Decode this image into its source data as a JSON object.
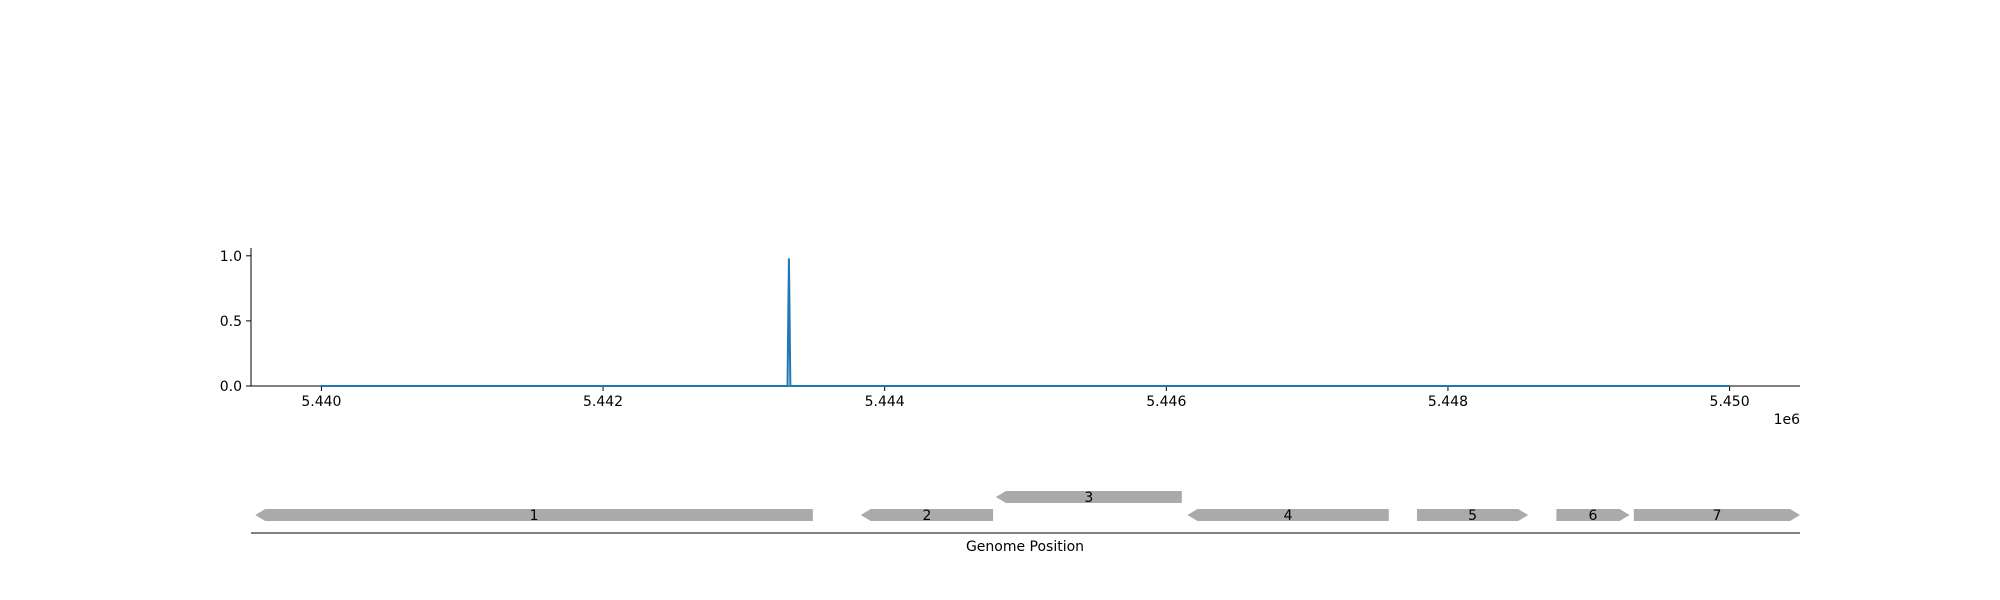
{
  "chart_data": {
    "type": "line",
    "title": "",
    "xlabel": "Genome Position",
    "ylabel": "",
    "x_offset_text": "1e6",
    "xlim": [
      5439500,
      5450500
    ],
    "ylim": [
      0,
      1.06
    ],
    "x_ticks": [
      5440000,
      5442000,
      5444000,
      5446000,
      5448000,
      5450000
    ],
    "x_tick_labels": [
      "5.440",
      "5.442",
      "5.444",
      "5.446",
      "5.448",
      "5.450"
    ],
    "y_ticks": [
      0,
      0.5,
      1.0
    ],
    "y_tick_labels": [
      "0.0",
      "0.5",
      "1.0"
    ],
    "grid": false,
    "series": [
      {
        "color": "#1f77b4",
        "x": [
          5440000,
          5443310,
          5443320,
          5443330,
          5450000
        ],
        "y": [
          0,
          0,
          0.98,
          0,
          0
        ]
      }
    ],
    "genes": [
      {
        "label": "1",
        "start": 5439530,
        "end": 5443490,
        "strand": "-",
        "track": 0
      },
      {
        "label": "2",
        "start": 5443830,
        "end": 5444770,
        "strand": "-",
        "track": 0
      },
      {
        "label": "3",
        "start": 5444790,
        "end": 5446110,
        "strand": "-",
        "track": 1
      },
      {
        "label": "4",
        "start": 5446150,
        "end": 5447580,
        "strand": "-",
        "track": 0
      },
      {
        "label": "5",
        "start": 5447780,
        "end": 5448570,
        "strand": "+",
        "track": 0
      },
      {
        "label": "6",
        "start": 5448770,
        "end": 5449290,
        "strand": "+",
        "track": 0
      },
      {
        "label": "7",
        "start": 5449320,
        "end": 5450500,
        "strand": "+",
        "track": 0
      }
    ],
    "colors": {
      "line": "#1f77b4",
      "gene": "#aaaaaa",
      "axis": "#000000"
    }
  }
}
